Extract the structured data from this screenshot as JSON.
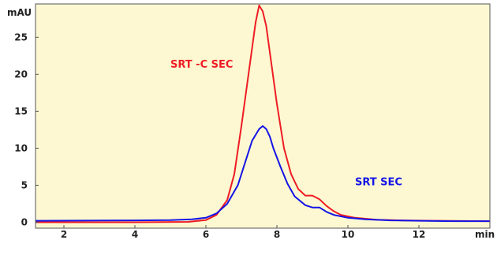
{
  "chart_data": {
    "type": "line",
    "title": "",
    "ylabel": "mAU",
    "xlabel": "min",
    "xlim": [
      1.2,
      14.0
    ],
    "ylim": [
      -0.8,
      29.5
    ],
    "x_ticks": [
      2,
      4,
      6,
      8,
      10,
      12
    ],
    "y_ticks": [
      0,
      5,
      10,
      15,
      20,
      25
    ],
    "grid": false,
    "background": "#fdf8d2",
    "series": [
      {
        "name": "SRT -C SEC",
        "color": "#ee1c24",
        "x": [
          1.2,
          4.0,
          5.5,
          6.0,
          6.3,
          6.6,
          6.8,
          7.0,
          7.2,
          7.4,
          7.5,
          7.6,
          7.7,
          7.8,
          8.0,
          8.2,
          8.4,
          8.6,
          8.8,
          9.0,
          9.2,
          9.4,
          9.6,
          9.8,
          10.2,
          10.8,
          11.5,
          12.5,
          14.0
        ],
        "y": [
          0.0,
          0.0,
          0.05,
          0.3,
          1.0,
          3.0,
          6.5,
          13.0,
          20.0,
          27.0,
          29.3,
          28.5,
          26.5,
          23.0,
          16.0,
          10.0,
          6.5,
          4.5,
          3.6,
          3.6,
          3.1,
          2.2,
          1.5,
          1.0,
          0.6,
          0.35,
          0.25,
          0.2,
          0.15
        ]
      },
      {
        "name": "SRT SEC",
        "color": "#1414e6",
        "x": [
          1.2,
          4.0,
          5.0,
          5.6,
          6.0,
          6.3,
          6.6,
          6.9,
          7.1,
          7.3,
          7.5,
          7.6,
          7.7,
          7.8,
          7.9,
          8.1,
          8.3,
          8.5,
          8.8,
          9.0,
          9.2,
          9.4,
          9.6,
          10.0,
          10.5,
          11.2,
          12.0,
          13.0,
          14.0
        ],
        "y": [
          0.2,
          0.25,
          0.3,
          0.4,
          0.6,
          1.2,
          2.5,
          5.0,
          8.0,
          11.0,
          12.6,
          13.0,
          12.6,
          11.6,
          10.0,
          7.5,
          5.2,
          3.5,
          2.3,
          2.0,
          2.0,
          1.4,
          1.0,
          0.6,
          0.4,
          0.25,
          0.2,
          0.15,
          0.15
        ]
      }
    ],
    "labels": [
      {
        "text": "SRT -C SEC",
        "color": "#ee1c24",
        "series": 0,
        "anchor_x": 5.0,
        "anchor_y": 20.9
      },
      {
        "text": "SRT SEC",
        "color": "#1414e6",
        "series": 1,
        "anchor_x": 10.2,
        "anchor_y": 5.0
      }
    ]
  }
}
